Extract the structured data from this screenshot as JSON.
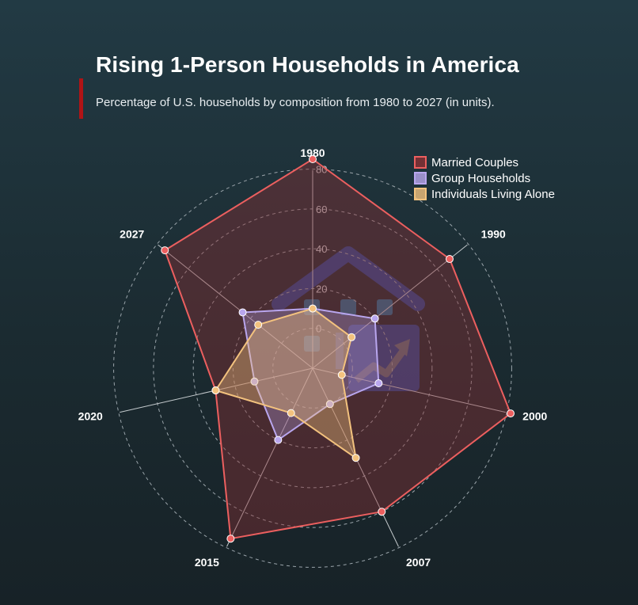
{
  "title": "Rising 1-Person Households in America",
  "subtitle": "Percentage of U.S. households by composition from 1980 to 2027 (in units).",
  "colors": {
    "accent": "#b01416",
    "married": "#ec5f5f",
    "group": "#b9a6ee",
    "alone": "#f3c27e"
  },
  "chart_data": {
    "type": "radar",
    "title": "Rising 1-Person Households in America",
    "categories": [
      "1980",
      "1990",
      "2000",
      "2007",
      "2015",
      "2020",
      "2027"
    ],
    "radial_ticks": [
      0,
      20,
      40,
      60,
      80
    ],
    "rlim": [
      -20,
      85
    ],
    "grid": true,
    "legend_position": "top-right",
    "series": [
      {
        "name": "Married Couples",
        "values": [
          85,
          68,
          82,
          60,
          75,
          30,
          75
        ]
      },
      {
        "name": "Group Households",
        "values": [
          10,
          20,
          14,
          0,
          20,
          10,
          25
        ]
      },
      {
        "name": "Individuals Living Alone",
        "values": [
          10,
          5,
          -5,
          30,
          5,
          30,
          15
        ]
      }
    ]
  }
}
